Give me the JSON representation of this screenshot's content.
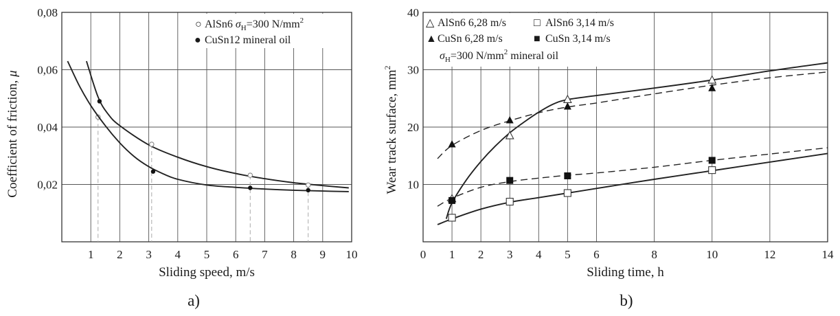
{
  "chart_data": [
    {
      "type": "scatter",
      "panel_label": "a)",
      "xlabel": "Sliding speed, m/s",
      "ylabel": "Coefficient of friction, ",
      "ylabel_symbol": "μ",
      "xlim": [
        0,
        10
      ],
      "ylim": [
        0,
        0.08
      ],
      "xticks": [
        1,
        2,
        3,
        4,
        5,
        6,
        7,
        8,
        9,
        10
      ],
      "yticks": [
        0.02,
        0.04,
        0.06,
        0.08
      ],
      "ytick_labels": [
        "0,02",
        "0,04",
        "0,06",
        "0,08"
      ],
      "grid": true,
      "legend_position": "top-right",
      "legend": [
        {
          "marker": "○",
          "prefix": "AlSn6 ",
          "sym": "σ",
          "sub": "H",
          "rest": "=300 N/mm",
          "sup": "2"
        },
        {
          "marker": "●",
          "text": "CuSn12   mineral oil"
        }
      ],
      "series": [
        {
          "name": "AlSn6",
          "marker": "open-circle",
          "points": [
            [
              1.25,
              0.0435
            ],
            [
              3.1,
              0.034
            ],
            [
              6.5,
              0.0232
            ],
            [
              8.5,
              0.0198
            ]
          ],
          "curve": [
            [
              0.85,
              0.063
            ],
            [
              1.25,
              0.0505
            ],
            [
              1.6,
              0.0445
            ],
            [
              2.0,
              0.0405
            ],
            [
              3.0,
              0.0338
            ],
            [
              4.0,
              0.0295
            ],
            [
              5.0,
              0.0262
            ],
            [
              6.0,
              0.0238
            ],
            [
              7.0,
              0.022
            ],
            [
              8.0,
              0.0206
            ],
            [
              9.0,
              0.0196
            ],
            [
              9.9,
              0.0188
            ]
          ]
        },
        {
          "name": "CuSn12",
          "marker": "filled-circle",
          "points": [
            [
              1.3,
              0.049
            ],
            [
              3.15,
              0.0245
            ],
            [
              6.5,
              0.0188
            ],
            [
              8.5,
              0.018
            ]
          ],
          "curve": [
            [
              0.2,
              0.063
            ],
            [
              0.6,
              0.0545
            ],
            [
              1.0,
              0.0475
            ],
            [
              1.5,
              0.0405
            ],
            [
              2.0,
              0.0345
            ],
            [
              2.5,
              0.0297
            ],
            [
              3.0,
              0.0262
            ],
            [
              3.5,
              0.0237
            ],
            [
              4.0,
              0.0218
            ],
            [
              5.0,
              0.0198
            ],
            [
              6.0,
              0.019
            ],
            [
              7.0,
              0.0184
            ],
            [
              8.0,
              0.018
            ],
            [
              9.0,
              0.0177
            ],
            [
              9.9,
              0.0175
            ]
          ]
        }
      ]
    },
    {
      "type": "line",
      "panel_label": "b)",
      "xlabel": "Sliding time, h",
      "ylabel": "Wear track surface, mm",
      "ylabel_sup": "2",
      "xlim": [
        0,
        14
      ],
      "ylim": [
        0,
        40
      ],
      "xticks": [
        0,
        1,
        2,
        3,
        4,
        5,
        6,
        8,
        10,
        12,
        14
      ],
      "yticks": [
        10,
        20,
        30,
        40
      ],
      "grid": true,
      "legend_position": "top-left",
      "legend": [
        {
          "marker": "△",
          "text": "AlSn6 6,28 m/s"
        },
        {
          "marker": "□",
          "text": "AlSn6 3,14 m/s"
        },
        {
          "marker": "▲",
          "text": "CuSn  6,28 m/s"
        },
        {
          "marker": "■",
          "text": "CuSn  3,14 m/s"
        }
      ],
      "legend_note": {
        "sym": "σ",
        "sub": "H",
        "rest": "=300 N/mm",
        "sup": "2",
        "tail": " mineral oil"
      },
      "series": [
        {
          "name": "AlSn6 6,28 m/s",
          "marker": "open-triangle",
          "line": "solid",
          "points": [
            [
              1,
              7.5
            ],
            [
              3,
              18.5
            ],
            [
              5,
              24.8
            ],
            [
              10,
              28.2
            ]
          ],
          "curve": [
            [
              0.8,
              4.0
            ],
            [
              1.0,
              6.8
            ],
            [
              1.5,
              10.8
            ],
            [
              2.0,
              14.0
            ],
            [
              2.5,
              16.7
            ],
            [
              3.0,
              19.0
            ],
            [
              3.5,
              20.9
            ],
            [
              4.0,
              22.6
            ],
            [
              4.5,
              24.0
            ],
            [
              5.0,
              24.8
            ],
            [
              6.0,
              25.5
            ],
            [
              8.0,
              26.8
            ],
            [
              10.0,
              28.2
            ],
            [
              12.0,
              29.8
            ],
            [
              14.0,
              31.2
            ]
          ]
        },
        {
          "name": "CuSn 6,28 m/s",
          "marker": "filled-triangle",
          "line": "dashed",
          "points": [
            [
              1,
              17.0
            ],
            [
              3,
              21.2
            ],
            [
              5,
              23.6
            ],
            [
              10,
              26.8
            ]
          ],
          "curve": [
            [
              0.5,
              14.5
            ],
            [
              1.0,
              16.8
            ],
            [
              2.0,
              19.4
            ],
            [
              3.0,
              21.1
            ],
            [
              4.0,
              22.5
            ],
            [
              5.0,
              23.5
            ],
            [
              6.0,
              24.2
            ],
            [
              8.0,
              25.8
            ],
            [
              10.0,
              27.3
            ],
            [
              12.0,
              28.6
            ],
            [
              14.0,
              29.6
            ]
          ]
        },
        {
          "name": "CuSn 3,14 m/s",
          "marker": "filled-square",
          "line": "dashed",
          "points": [
            [
              1,
              7.2
            ],
            [
              3,
              10.7
            ],
            [
              5,
              11.5
            ],
            [
              10,
              14.2
            ]
          ],
          "curve": [
            [
              0.5,
              6.2
            ],
            [
              1.0,
              7.6
            ],
            [
              2.0,
              9.5
            ],
            [
              3.0,
              10.5
            ],
            [
              4.0,
              11.1
            ],
            [
              5.0,
              11.6
            ],
            [
              6.0,
              12.0
            ],
            [
              8.0,
              13.0
            ],
            [
              10.0,
              14.2
            ],
            [
              12.0,
              15.3
            ],
            [
              14.0,
              16.4
            ]
          ]
        },
        {
          "name": "AlSn6 3,14 m/s",
          "marker": "open-square",
          "line": "solid",
          "points": [
            [
              1,
              4.2
            ],
            [
              3,
              7.0
            ],
            [
              5,
              8.5
            ],
            [
              10,
              12.5
            ]
          ],
          "curve": [
            [
              0.5,
              3.0
            ],
            [
              1.0,
              4.0
            ],
            [
              2.0,
              5.7
            ],
            [
              3.0,
              6.9
            ],
            [
              4.0,
              7.7
            ],
            [
              5.0,
              8.5
            ],
            [
              6.0,
              9.3
            ],
            [
              8.0,
              10.9
            ],
            [
              10.0,
              12.4
            ],
            [
              12.0,
              13.9
            ],
            [
              14.0,
              15.4
            ]
          ]
        }
      ]
    }
  ]
}
